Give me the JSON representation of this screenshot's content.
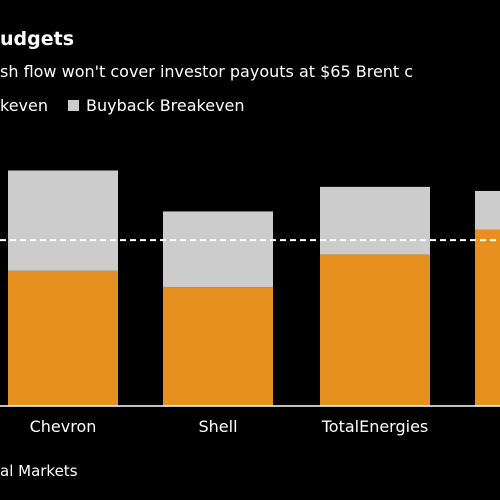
{
  "title": "udgets",
  "subtitle": "sh flow won't cover investor payouts at $65 Brent c",
  "legend": {
    "items": [
      {
        "label": "keven",
        "color": "#e8901f"
      },
      {
        "label": "Buyback Breakeven",
        "color": "#cccccc"
      }
    ]
  },
  "source": "al Markets",
  "colors": {
    "background": "#000000",
    "reference_line": "#ffffff",
    "axis": "#ffffff"
  },
  "chart_data": {
    "type": "bar",
    "stacked": true,
    "categories": [
      "",
      "Chevron",
      "Shell",
      "TotalEnergies",
      ""
    ],
    "series": [
      {
        "name": "keven",
        "color": "#e8901f",
        "values": [
          null,
          66,
          58,
          74,
          86
        ]
      },
      {
        "name": "Buyback Breakeven",
        "color": "#cccccc",
        "values": [
          null,
          49,
          37,
          33,
          19
        ]
      }
    ],
    "reference_line": {
      "value": 81,
      "style": "dashed"
    },
    "ylim": [
      0,
      125
    ],
    "grid": false
  }
}
